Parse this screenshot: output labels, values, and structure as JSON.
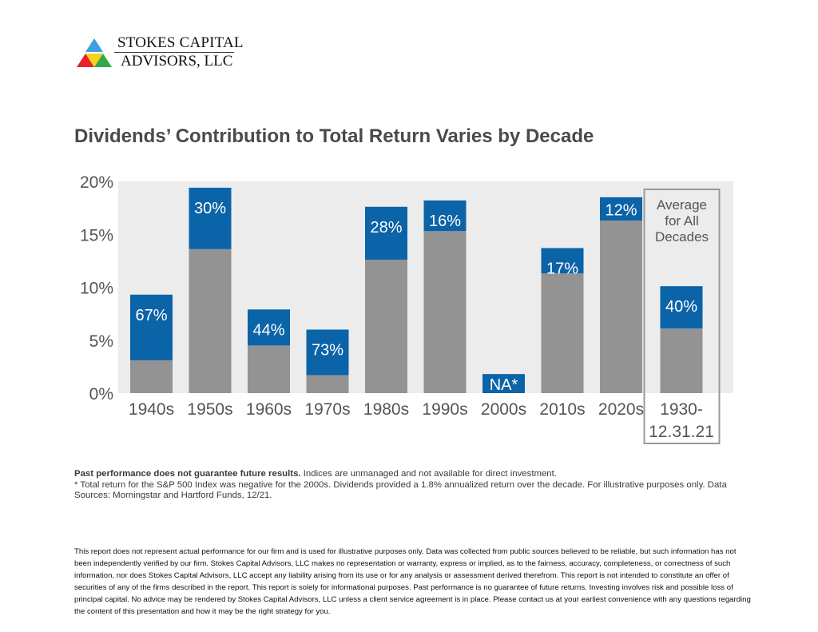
{
  "logo": {
    "line1": "STOKES CAPITAL",
    "line2": "ADVISORS, LLC",
    "colors": [
      "#3aa0e0",
      "#e8212a",
      "#f4d21e",
      "#33a84a"
    ]
  },
  "title": "Dividends’ Contribution to Total Return Varies by Decade",
  "chart_data": {
    "type": "bar",
    "stacked": true,
    "categories": [
      "1940s",
      "1950s",
      "1960s",
      "1970s",
      "1980s",
      "1990s",
      "2000s",
      "2010s",
      "2020s",
      "1930-\n12.31.21"
    ],
    "series": [
      {
        "values": [
          3.1,
          13.6,
          4.5,
          1.7,
          12.6,
          15.3,
          0,
          11.3,
          16.3,
          6.1
        ]
      },
      {
        "values": [
          6.2,
          5.8,
          3.4,
          4.3,
          5.0,
          2.9,
          1.8,
          2.4,
          2.2,
          4.0
        ]
      }
    ],
    "data_labels": [
      "67%",
      "30%",
      "44%",
      "73%",
      "28%",
      "16%",
      "NA*",
      "17%",
      "12%",
      "40%"
    ],
    "yticks": [
      "0%",
      "5%",
      "10%",
      "15%",
      "20%"
    ],
    "ylim": [
      0,
      20
    ],
    "grid": false,
    "highlight_box_label": [
      "Average",
      "for All",
      "Decades"
    ],
    "colors": {
      "price": "#939393",
      "dividend": "#0b63a8",
      "background": "#ececec"
    }
  },
  "notes": {
    "bold": "Past performance does not guarantee future results.",
    "line1_rest": " Indices are unmanaged and not available for direct investment.",
    "line2": "* Total return for the S&P 500 Index was negative for the 2000s. Dividends provided a 1.8% annualized return over the decade. For illustrative purposes only. Data Sources: Morningstar and Hartford Funds, 12/21."
  },
  "disclaimer": "This report does not represent actual performance for our firm and is used for illustrative purposes only.  Data was collected from public sources believed to be reliable, but such information has not been independently verified by our firm. Stokes Capital Advisors, LLC makes no representation or warranty, express or implied, as to the fairness, accuracy, completeness, or correctness of such information, nor does Stokes Capital Advisors, LLC accept any liability arising from its use or for any analysis or assessment derived therefrom. This report is not intended to constitute an offer of securities of any of the firms described in the report.  This report is solely for informational purposes. Past performance is no guarantee of future returns. Investing involves risk and possible loss of principal capital. No advice may be rendered by Stokes Capital Advisors, LLC unless a client service agreement is in place. Please contact us at your earliest convenience with any questions regarding the content of this presentation and how it may be the right strategy for you."
}
